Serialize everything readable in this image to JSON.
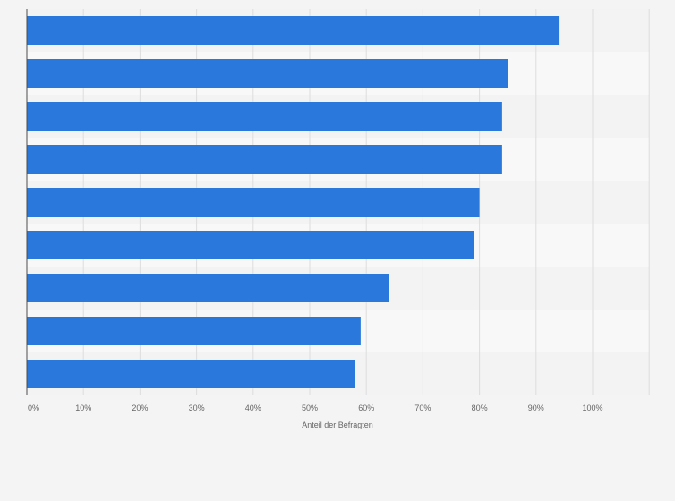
{
  "chart_data": {
    "type": "bar",
    "orientation": "horizontal",
    "categories": [
      "",
      "",
      "",
      "",
      "",
      "",
      "",
      "",
      ""
    ],
    "values": [
      94,
      85,
      84,
      84,
      80,
      79,
      64,
      59,
      58
    ],
    "xlabel": "Anteil der Befragten",
    "ylabel": "",
    "xlim": [
      0,
      110
    ],
    "x_ticks": [
      0,
      10,
      20,
      30,
      40,
      50,
      60,
      70,
      80,
      90,
      100
    ],
    "x_tick_labels": [
      "0%",
      "10%",
      "20%",
      "30%",
      "40%",
      "50%",
      "60%",
      "70%",
      "80%",
      "90%",
      "100%"
    ],
    "grid": true,
    "legend": "none",
    "colors": {
      "bar": "#2a78db",
      "plot_band_light": "#f8f8f8",
      "plot_band_dark": "#f3f3f3",
      "grid": "#dddddd",
      "axis": "#4d4d4d",
      "text": "#666666",
      "background": "#f4f4f4"
    }
  }
}
